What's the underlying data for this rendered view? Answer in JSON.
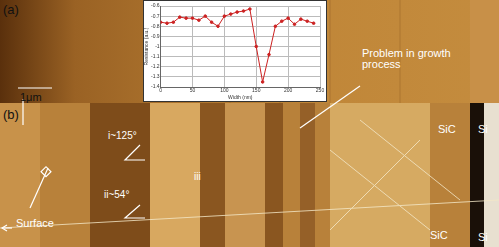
{
  "chart_data": {
    "type": "line",
    "x": [
      0,
      10,
      20,
      30,
      40,
      50,
      60,
      70,
      80,
      90,
      100,
      110,
      120,
      130,
      140,
      150,
      160,
      170,
      180,
      190,
      200,
      210,
      220,
      230,
      240
    ],
    "values": [
      -0.76,
      -0.77,
      -0.76,
      -0.71,
      -0.72,
      -0.72,
      -0.74,
      -0.7,
      -0.76,
      -0.8,
      -0.7,
      -0.68,
      -0.66,
      -0.65,
      -0.63,
      -1.0,
      -1.35,
      -1.08,
      -0.8,
      -0.75,
      -0.72,
      -0.78,
      -0.73,
      -0.75,
      -0.77
    ],
    "color": "#cc2222",
    "marker": "circle",
    "x_label": "Width (nm)",
    "y_label": "Resistance (a.u.)",
    "xlim": [
      0,
      250
    ],
    "xticks": [
      0,
      50,
      100,
      150,
      200,
      250
    ],
    "ylim": [
      -1.4,
      -0.6
    ],
    "yticks": [
      -1.4,
      -1.3,
      -1.2,
      -1.1,
      -1.0,
      -0.9,
      -0.8,
      -0.7,
      -0.6
    ],
    "grid": true
  },
  "image": {
    "panel_a": "(a)",
    "panel_b": "(b)",
    "scale_bar": "1μm",
    "annotations": {
      "problem": "Problem in growth process",
      "surface": "Surface",
      "angle_i": "i~125°",
      "angle_ii": "ii~54°",
      "region_iii": "iii",
      "sic_top": "SiC",
      "si_top": "Si",
      "sic_bottom": "SiC",
      "si_bottom": "Si"
    }
  }
}
